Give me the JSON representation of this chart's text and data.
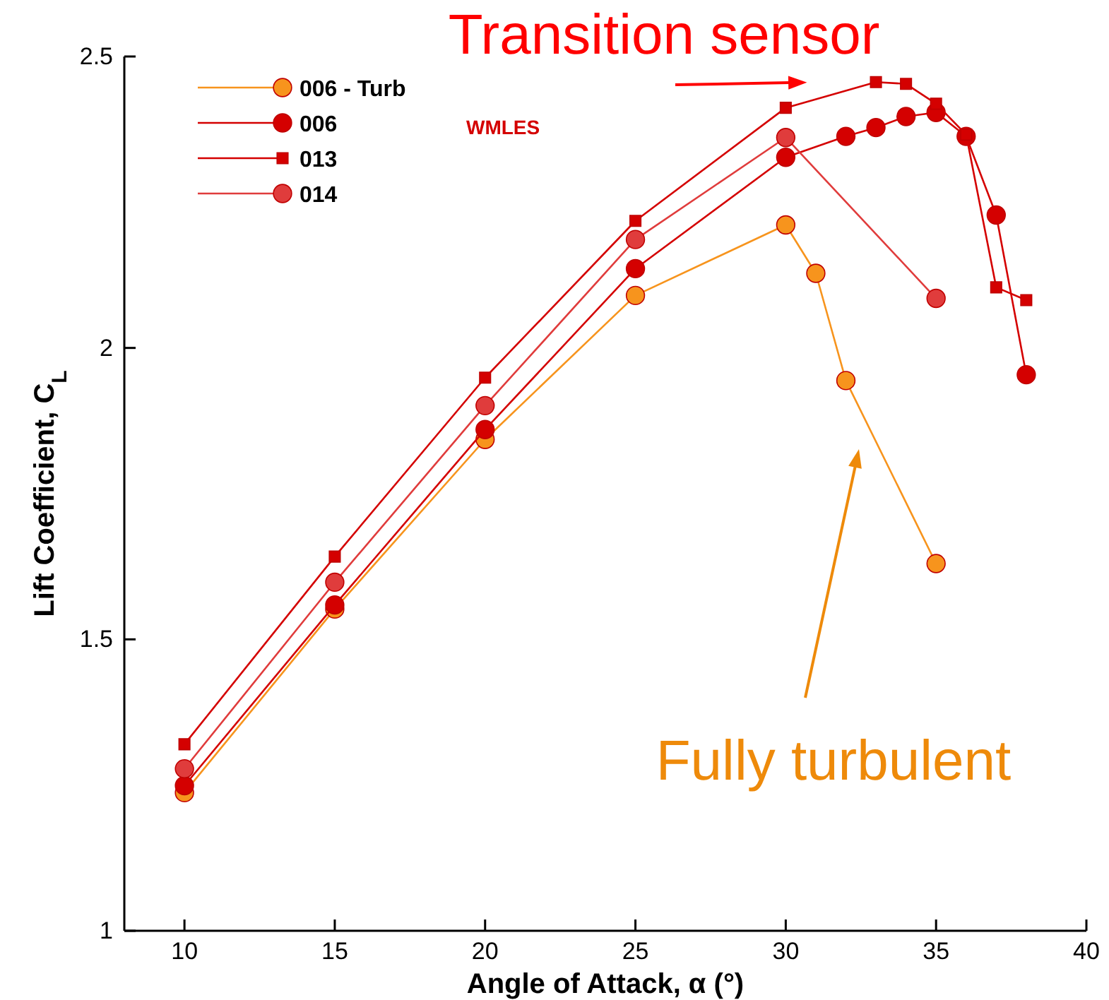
{
  "chart_data": {
    "type": "line",
    "xlabel": "Angle of Attack, α (°)",
    "ylabel": "Lift Coefficient, C$_{L}$",
    "xlim": [
      8,
      40
    ],
    "ylim": [
      1,
      2.5
    ],
    "xticks": [
      10,
      15,
      20,
      25,
      30,
      35,
      40
    ],
    "yticks": [
      1,
      1.5,
      2,
      2.5
    ],
    "grid": false,
    "legend": "top left",
    "line_style": "solid",
    "series": [
      {
        "name": "006 - Turb",
        "color": "#f7941d",
        "marker": "circle",
        "x": [
          10,
          15,
          20,
          25,
          30,
          31,
          32,
          35
        ],
        "values": [
          1.237,
          1.552,
          1.843,
          2.09,
          2.211,
          2.128,
          1.944,
          1.63
        ]
      },
      {
        "name": "006",
        "color": "#d40000",
        "marker": "circle",
        "x": [
          10,
          15,
          20,
          25,
          30,
          32,
          33,
          34,
          35,
          36,
          37,
          38
        ],
        "values": [
          1.249,
          1.559,
          1.86,
          2.136,
          2.327,
          2.363,
          2.378,
          2.397,
          2.404,
          2.363,
          2.228,
          1.954
        ]
      },
      {
        "name": "013",
        "color": "#d40000",
        "marker": "square",
        "x": [
          10,
          15,
          20,
          25,
          30,
          33,
          34,
          35,
          36,
          37,
          38
        ],
        "values": [
          1.32,
          1.642,
          1.949,
          2.218,
          2.412,
          2.456,
          2.453,
          2.419,
          2.366,
          2.104,
          2.082
        ]
      },
      {
        "name": "014",
        "color": "#e03c3c",
        "marker": "circle",
        "x": [
          10,
          15,
          20,
          25,
          30,
          35
        ],
        "values": [
          1.278,
          1.598,
          1.901,
          2.186,
          2.361,
          2.085
        ]
      }
    ],
    "annotations": [
      {
        "text": "Transition sensor",
        "x": 30,
        "y": 2.412
      },
      "WMLES",
      "Fully turbulent"
    ]
  }
}
